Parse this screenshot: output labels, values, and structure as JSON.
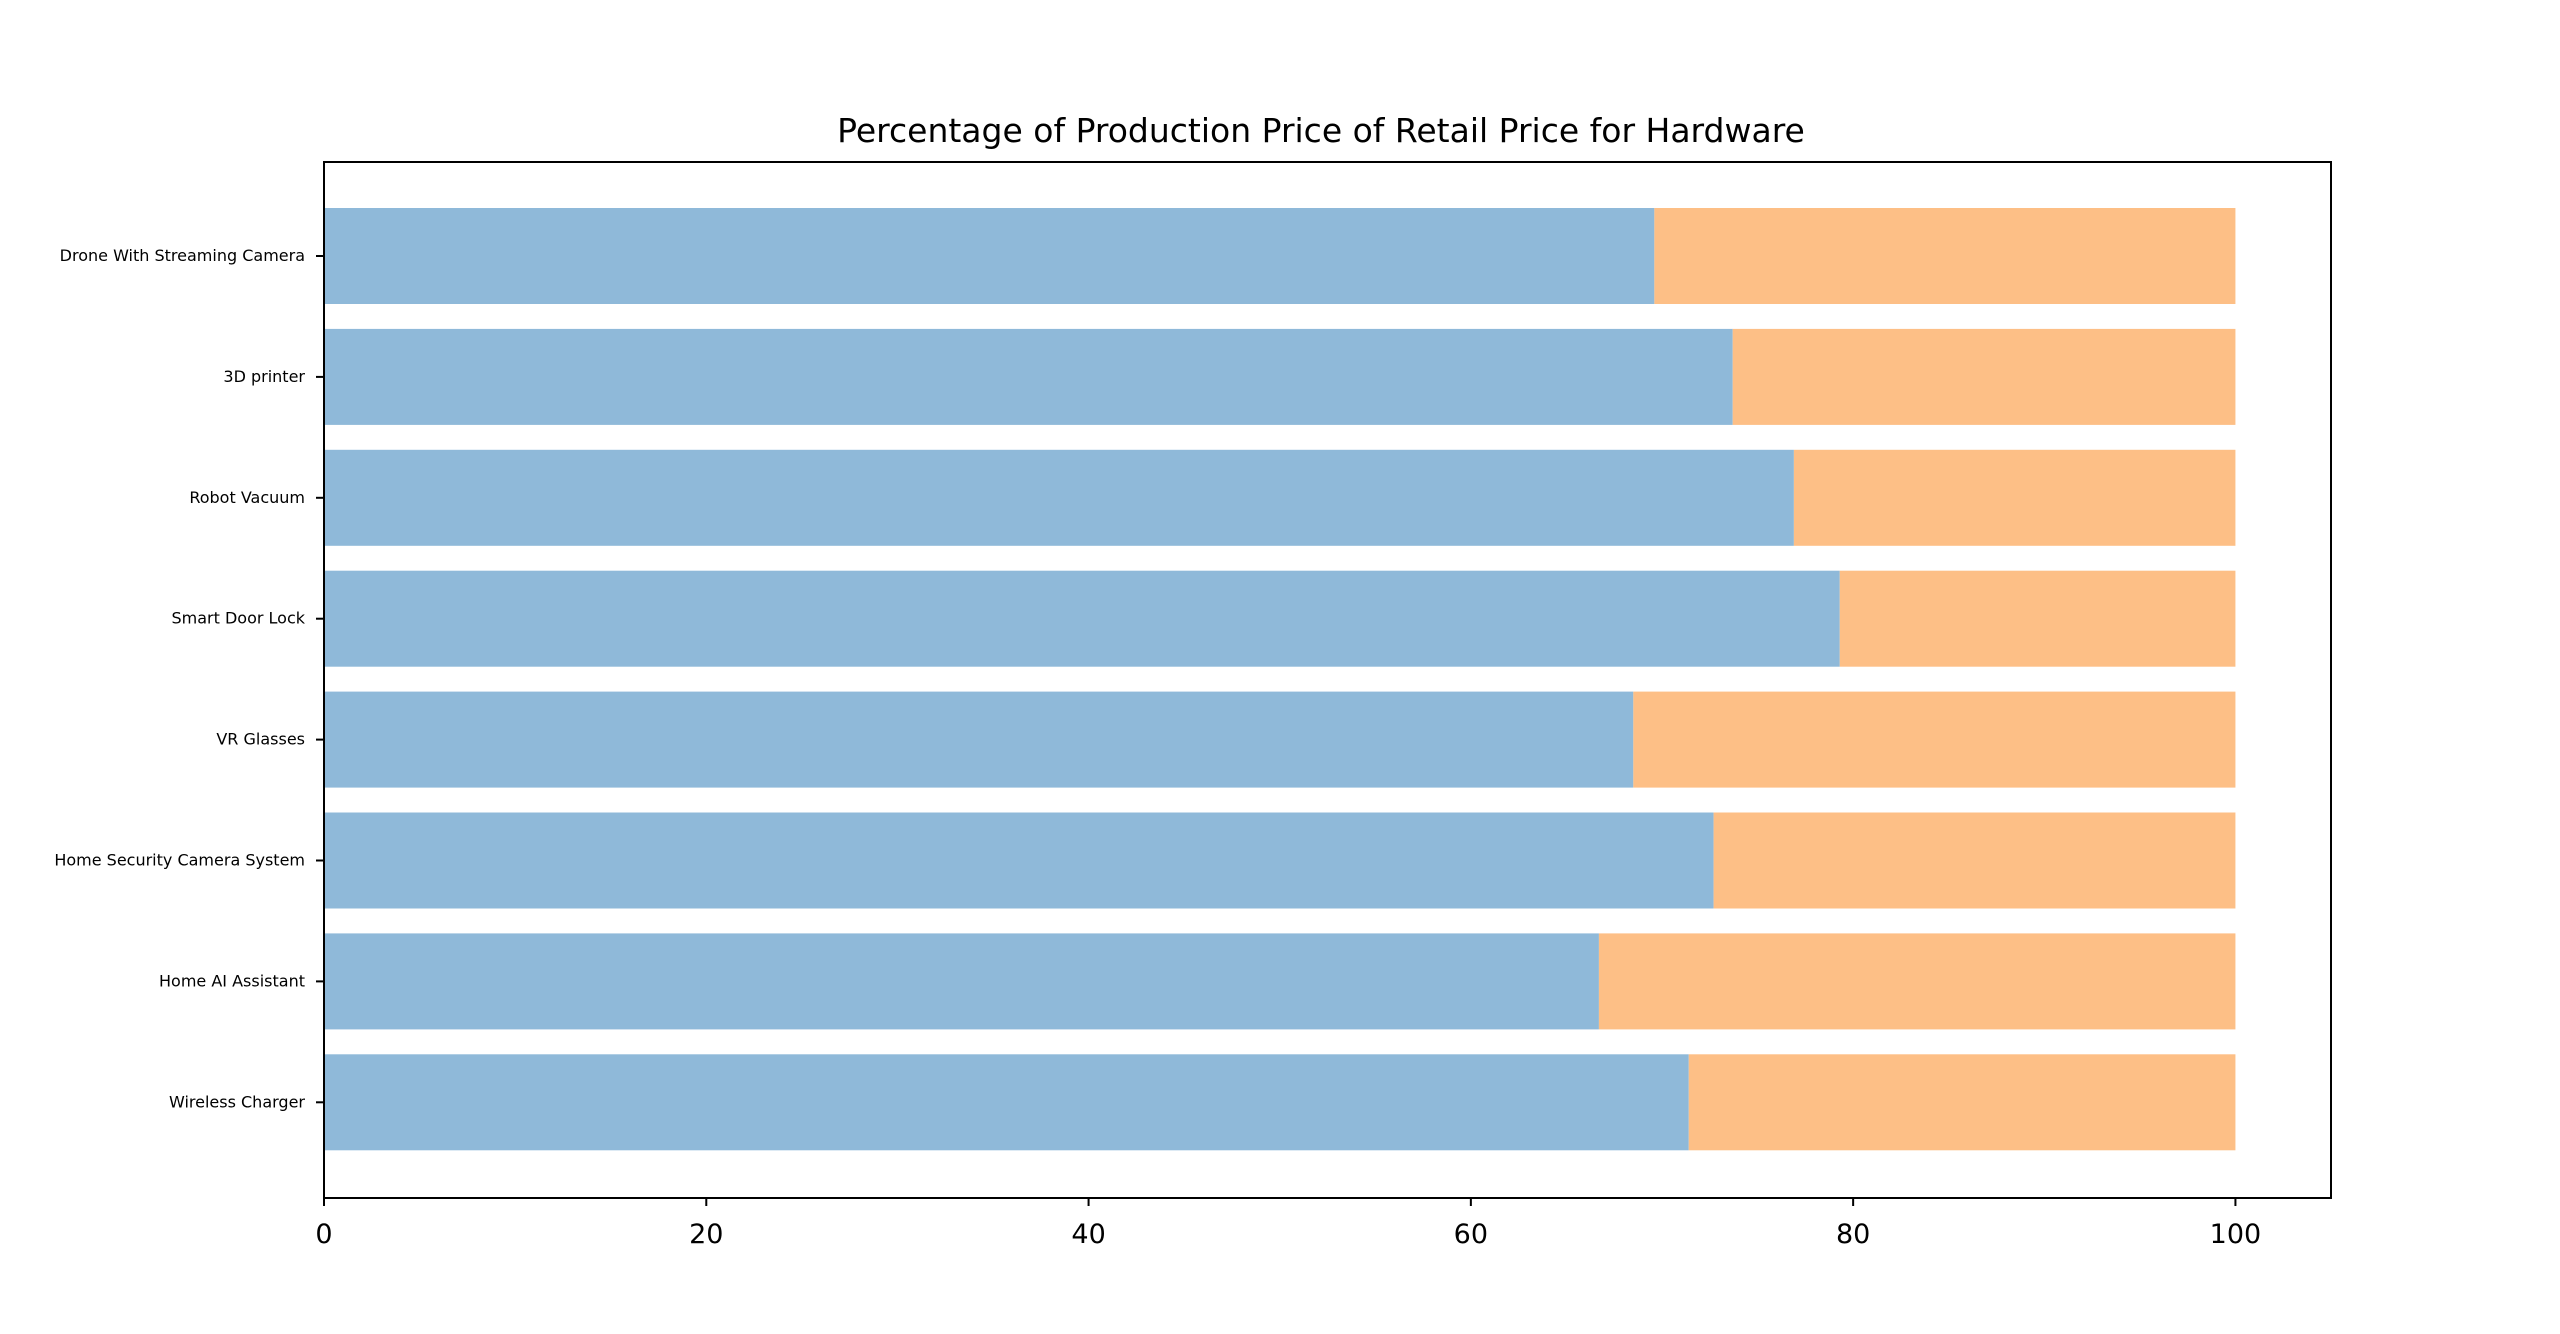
{
  "chart_data": {
    "type": "bar",
    "orientation": "horizontal",
    "stacked": true,
    "title": "Percentage of Production Price of Retail Price for Hardware",
    "xlabel": "",
    "ylabel": "",
    "xlim": [
      0,
      105
    ],
    "xticks": [
      0,
      20,
      40,
      60,
      80,
      100
    ],
    "grid": false,
    "legend": "none",
    "categories": [
      "Drone With Streaming Camera",
      "3D printer",
      "Robot Vacuum",
      "Smart Door Lock",
      "VR Glasses",
      "Home Security Camera System",
      "Home AI Assistant",
      "Wireless Charger"
    ],
    "series": [
      {
        "color": "#8fb9d9",
        "values": [
          69.6,
          73.7,
          76.9,
          79.3,
          68.5,
          72.7,
          66.7,
          71.4
        ]
      },
      {
        "color": "#fdbf86",
        "values": [
          30.4,
          26.3,
          23.1,
          20.7,
          31.5,
          27.3,
          33.3,
          28.6
        ]
      }
    ]
  }
}
